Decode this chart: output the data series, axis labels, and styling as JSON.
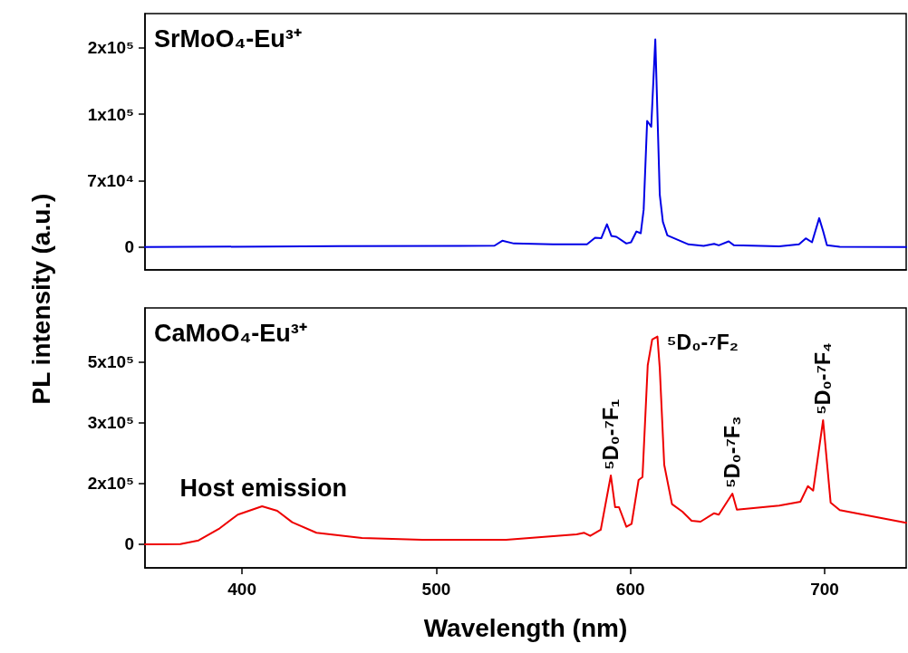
{
  "chart_data": [
    {
      "type": "line",
      "ylabel": "PL intensity (a.u.)",
      "annotations": [
        "SrMoO₄-Eu³⁺"
      ],
      "xlim": [
        350,
        742
      ],
      "xticks": [
        400,
        500,
        600,
        700
      ],
      "ylim": [
        -24000,
        246000
      ],
      "yticks": [
        0,
        {
          "value": 70000,
          "label": "7x10⁴"
        },
        {
          "value": 140000,
          "label": "1x10⁵"
        },
        {
          "value": 210000,
          "label": "2x10⁵"
        }
      ],
      "tick_labels": "y",
      "grid": false,
      "legend": false,
      "marker": "none",
      "line_style": "solid",
      "series": [
        {
          "color": "#0000e6",
          "x": [
            350,
            450,
            530,
            534,
            540,
            560,
            577.6,
            581.8,
            585,
            587.9,
            590.2,
            592.8,
            597.9,
            600.3,
            603.1,
            605.3,
            606.8,
            608.6,
            610.7,
            612.8,
            615.1,
            616.7,
            619,
            629.9,
            637.7,
            643.1,
            645.5,
            650.6,
            653.3,
            676.6,
            686.8,
            690.3,
            693.5,
            697.2,
            699.2,
            701.2,
            707.8,
            742
          ],
          "values": [
            0,
            1000,
            1500,
            6700,
            3800,
            2900,
            2900,
            9800,
            9500,
            24100,
            11700,
            10800,
            3800,
            5100,
            16500,
            14600,
            39300,
            133000,
            126700,
            218700,
            55200,
            26700,
            12400,
            2900,
            1200,
            3500,
            1900,
            6000,
            1900,
            700,
            2900,
            9200,
            5100,
            30500,
            17100,
            1900,
            300,
            0
          ]
        }
      ]
    },
    {
      "type": "line",
      "xlabel": "Wavelength (nm)",
      "annotations": [
        "CaMoO₄-Eu³⁺",
        {
          "text": "Host emission",
          "x": 411,
          "y": 106600
        },
        {
          "text": "⁵D₀-⁷F₁",
          "x": 590,
          "y": 192800
        },
        {
          "text": "⁵D₀-⁷F₂",
          "x": 614,
          "y": 581700
        },
        {
          "text": "⁵D₀-⁷F₃",
          "x": 652.5,
          "y": 142000
        },
        {
          "text": "⁵D₀-⁷F₄",
          "x": 699.2,
          "y": 347600
        }
      ],
      "xlim": [
        350,
        742
      ],
      "xticks": [
        400,
        500,
        600,
        700
      ],
      "ylim": [
        -66000,
        662000
      ],
      "yticks": [
        0,
        {
          "value": 170000,
          "label": "2x10⁵"
        },
        {
          "value": 340000,
          "label": "3x10⁵"
        },
        {
          "value": 510000,
          "label": "5x10⁵"
        }
      ],
      "grid": false,
      "legend": false,
      "marker": "none",
      "line_style": "solid",
      "series": [
        {
          "color": "#ee0000",
          "x": [
            350,
            368.2,
            377.6,
            388.5,
            397.8,
            410.3,
            418.1,
            425.8,
            438.3,
            461.7,
            492.8,
            531.8,
            536,
            572.3,
            576.2,
            579.3,
            584.7,
            589.9,
            592.1,
            594.1,
            597.9,
            600.6,
            604.2,
            606.2,
            608.9,
            611.2,
            613.9,
            615.1,
            617.4,
            621.4,
            626.8,
            631.5,
            636.1,
            643.1,
            645.5,
            652.5,
            654.8,
            676.6,
            687.5,
            691.4,
            694.1,
            699.2,
            703.1,
            707.8,
            742
          ],
          "values": [
            0,
            800,
            10900,
            44900,
            83000,
            106600,
            93900,
            61700,
            32200,
            17800,
            12700,
            12700,
            12700,
            27900,
            32200,
            23600,
            40600,
            192800,
            104000,
            104000,
            49000,
            57600,
            180100,
            188500,
            501600,
            573400,
            581700,
            493000,
            222500,
            112400,
            91300,
            66000,
            63400,
            87000,
            83000,
            142000,
            97200,
            108300,
            119200,
            163100,
            150400,
            347600,
            116700,
            95600,
            60100
          ]
        }
      ]
    }
  ]
}
